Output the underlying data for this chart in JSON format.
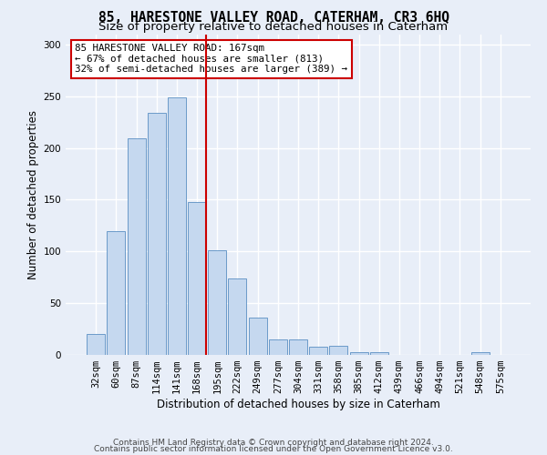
{
  "title": "85, HARESTONE VALLEY ROAD, CATERHAM, CR3 6HQ",
  "subtitle": "Size of property relative to detached houses in Caterham",
  "xlabel": "Distribution of detached houses by size in Caterham",
  "ylabel": "Number of detached properties",
  "footer_line1": "Contains HM Land Registry data © Crown copyright and database right 2024.",
  "footer_line2": "Contains public sector information licensed under the Open Government Licence v3.0.",
  "categories": [
    "32sqm",
    "60sqm",
    "87sqm",
    "114sqm",
    "141sqm",
    "168sqm",
    "195sqm",
    "222sqm",
    "249sqm",
    "277sqm",
    "304sqm",
    "331sqm",
    "358sqm",
    "385sqm",
    "412sqm",
    "439sqm",
    "466sqm",
    "494sqm",
    "521sqm",
    "548sqm",
    "575sqm"
  ],
  "values": [
    20,
    120,
    209,
    234,
    249,
    148,
    101,
    74,
    36,
    15,
    15,
    8,
    9,
    3,
    3,
    0,
    0,
    0,
    0,
    3,
    0
  ],
  "bar_color": "#c5d8ef",
  "bar_edge_color": "#5a8fc3",
  "bar_linewidth": 0.6,
  "highlight_index": 5,
  "highlight_line_color": "#cc0000",
  "annotation_text": "85 HARESTONE VALLEY ROAD: 167sqm\n← 67% of detached houses are smaller (813)\n32% of semi-detached houses are larger (389) →",
  "annotation_box_facecolor": "#ffffff",
  "annotation_box_edgecolor": "#cc0000",
  "ylim": [
    0,
    310
  ],
  "yticks": [
    0,
    50,
    100,
    150,
    200,
    250,
    300
  ],
  "background_color": "#e8eef8",
  "grid_color": "#ffffff",
  "title_fontsize": 10.5,
  "subtitle_fontsize": 9.5,
  "ylabel_fontsize": 8.5,
  "xlabel_fontsize": 8.5,
  "tick_fontsize": 7.5,
  "annotation_fontsize": 7.8,
  "footer_fontsize": 6.5
}
